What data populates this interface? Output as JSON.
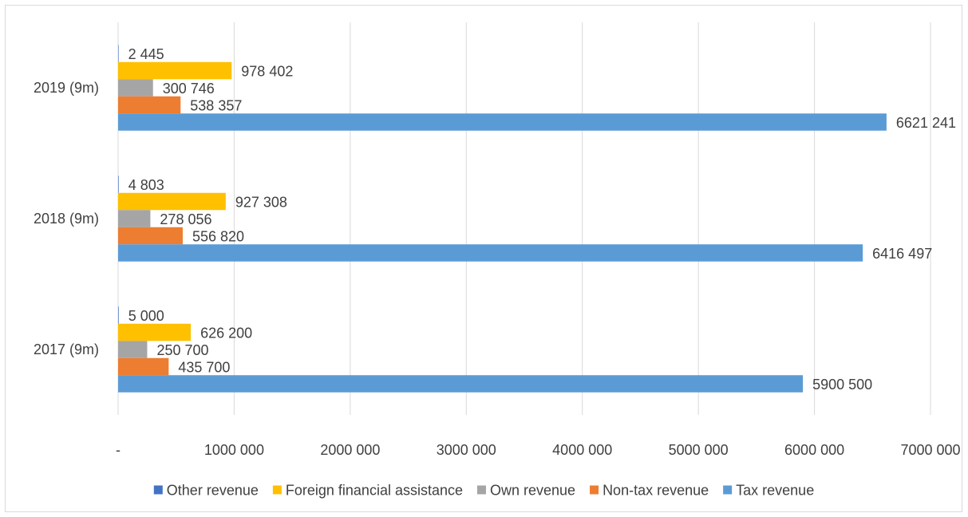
{
  "chart_data": {
    "type": "bar",
    "orientation": "horizontal",
    "categories": [
      "2019 (9m)",
      "2018 (9m)",
      "2017 (9m)"
    ],
    "series": [
      {
        "name": "Other revenue",
        "color": "#4472C4",
        "values": [
          2445,
          4803,
          5000
        ],
        "labels": [
          "2 445",
          "4 803",
          "5 000"
        ]
      },
      {
        "name": "Foreign financial assistance",
        "color": "#FFC000",
        "values": [
          978402,
          927308,
          626200
        ],
        "labels": [
          "978 402",
          "927 308",
          "626 200"
        ]
      },
      {
        "name": "Own revenue",
        "color": "#A5A5A5",
        "values": [
          300746,
          278056,
          250700
        ],
        "labels": [
          "300 746",
          "278 056",
          "250 700"
        ]
      },
      {
        "name": "Non-tax revenue",
        "color": "#ED7D31",
        "values": [
          538357,
          556820,
          435700
        ],
        "labels": [
          "538 357",
          "556 820",
          "435 700"
        ]
      },
      {
        "name": "Tax revenue",
        "color": "#5B9BD5",
        "values": [
          6621241,
          6416497,
          5900500
        ],
        "labels": [
          "6621 241",
          "6416 497",
          "5900 500"
        ]
      }
    ],
    "xlim": [
      0,
      7000000
    ],
    "x_ticks": [
      0,
      1000000,
      2000000,
      3000000,
      4000000,
      5000000,
      6000000,
      7000000
    ],
    "x_tick_labels": [
      "-",
      "1000 000",
      "2000 000",
      "3000 000",
      "4000 000",
      "5000 000",
      "6000 000",
      "7000 000"
    ],
    "grid": "vertical",
    "legend_position": "bottom",
    "title": "",
    "xlabel": "",
    "ylabel": ""
  }
}
